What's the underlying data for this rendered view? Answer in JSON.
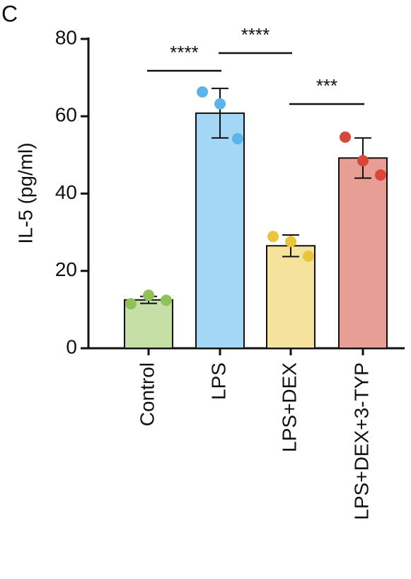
{
  "chart_data": {
    "type": "bar",
    "panel_label": "C",
    "y_label": "IL-5 (pg/ml)",
    "categories": [
      "Control",
      "LPS",
      "LPS+DEX",
      "LPS+DEX+3-TYP"
    ],
    "values": [
      12.5,
      60.8,
      26.5,
      49.2
    ],
    "errors": [
      0.9,
      6.4,
      2.8,
      5.2
    ],
    "colors": [
      "#c6dfa7",
      "#a4d7f6",
      "#f5e29c",
      "#e89e94"
    ],
    "point_colors": [
      "#8fc15a",
      "#5db4ea",
      "#ecc43a",
      "#d8473a"
    ],
    "points": [
      [
        11.5,
        13.7,
        12.4
      ],
      [
        66.3,
        63.2,
        54.2
      ],
      [
        28.9,
        27.6,
        23.8
      ],
      [
        54.6,
        48.5,
        44.8
      ]
    ],
    "comparisons": [
      {
        "categories": [
          "Control",
          "LPS"
        ],
        "label": "****"
      },
      {
        "categories": [
          "LPS",
          "LPS+DEX"
        ],
        "label": "****"
      },
      {
        "categories": [
          "LPS+DEX",
          "LPS+DEX+3-TYP"
        ],
        "label": "***"
      }
    ],
    "ylim": [
      0,
      80
    ],
    "yticks": [
      0,
      20,
      40,
      60,
      80
    ]
  }
}
